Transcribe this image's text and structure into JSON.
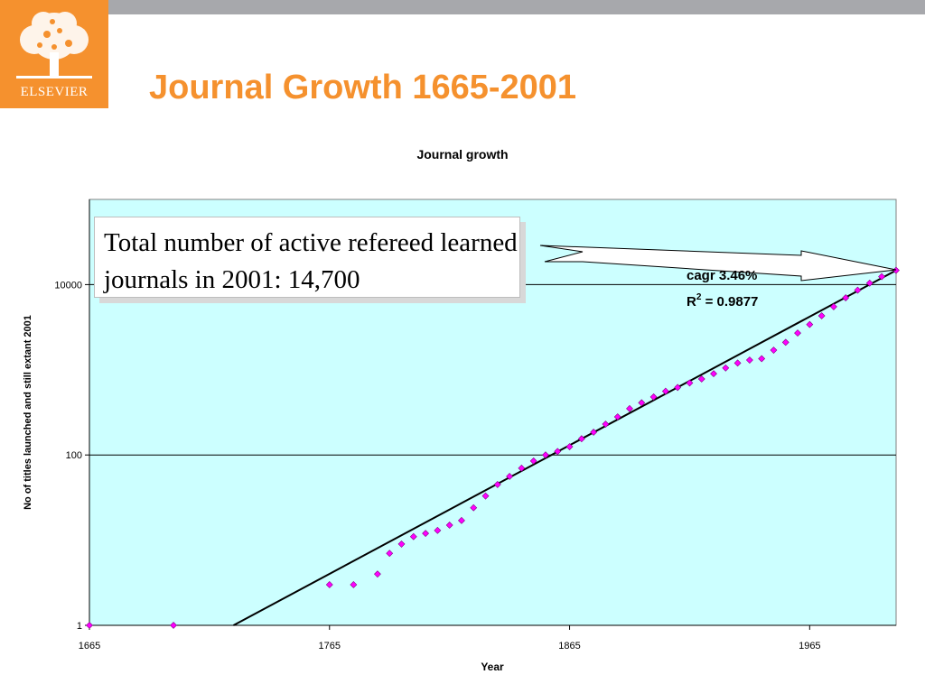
{
  "header": {
    "logo_text": "ELSEVIER",
    "title": "Journal Growth 1665-2001"
  },
  "callout": {
    "text": "Total number of active refereed learned journals in 2001: 14,700"
  },
  "colors": {
    "accent": "#f5912e",
    "plot_background": "#ccffff",
    "marker": "#ff00ff",
    "fit_line": "#000000",
    "top_bar": "#a7a8ac"
  },
  "chart_data": {
    "type": "scatter",
    "title": "Journal growth",
    "xlabel": "Year",
    "ylabel": "No of titles launched and still extant 2001",
    "x_ticks": [
      "1665",
      "1765",
      "1865",
      "1965"
    ],
    "y_ticks": [
      "1",
      "100",
      "10000"
    ],
    "xlim": [
      1665,
      2001
    ],
    "ylim": [
      1,
      100000
    ],
    "y_scale": "log",
    "grid": "horizontal major",
    "series": [
      {
        "marker": "diamond",
        "points": [
          [
            1665,
            1
          ],
          [
            1700,
            1
          ],
          [
            1765,
            3
          ],
          [
            1775,
            3
          ],
          [
            1785,
            4
          ],
          [
            1790,
            7
          ],
          [
            1795,
            9
          ],
          [
            1800,
            11
          ],
          [
            1805,
            12
          ],
          [
            1810,
            13
          ],
          [
            1815,
            15
          ],
          [
            1820,
            17
          ],
          [
            1825,
            24
          ],
          [
            1830,
            33
          ],
          [
            1835,
            45
          ],
          [
            1840,
            56
          ],
          [
            1845,
            70
          ],
          [
            1850,
            85
          ],
          [
            1855,
            100
          ],
          [
            1860,
            110
          ],
          [
            1865,
            125
          ],
          [
            1870,
            155
          ],
          [
            1875,
            185
          ],
          [
            1880,
            230
          ],
          [
            1885,
            280
          ],
          [
            1890,
            350
          ],
          [
            1895,
            410
          ],
          [
            1900,
            480
          ],
          [
            1905,
            560
          ],
          [
            1910,
            620
          ],
          [
            1915,
            700
          ],
          [
            1920,
            780
          ],
          [
            1925,
            900
          ],
          [
            1930,
            1050
          ],
          [
            1935,
            1200
          ],
          [
            1940,
            1300
          ],
          [
            1945,
            1350
          ],
          [
            1950,
            1700
          ],
          [
            1955,
            2100
          ],
          [
            1960,
            2700
          ],
          [
            1965,
            3400
          ],
          [
            1970,
            4300
          ],
          [
            1975,
            5500
          ],
          [
            1980,
            7000
          ],
          [
            1985,
            8600
          ],
          [
            1990,
            10400
          ],
          [
            1995,
            12400
          ],
          [
            2001,
            14700
          ]
        ]
      }
    ],
    "trendline": {
      "type": "exponential",
      "points": [
        [
          1725,
          1
        ],
        [
          2001,
          14700
        ]
      ],
      "label_cagr": "cagr 3.46%",
      "label_r2_prefix": "R",
      "label_r2_sup": "2",
      "label_r2_value": " = 0.9877"
    }
  }
}
